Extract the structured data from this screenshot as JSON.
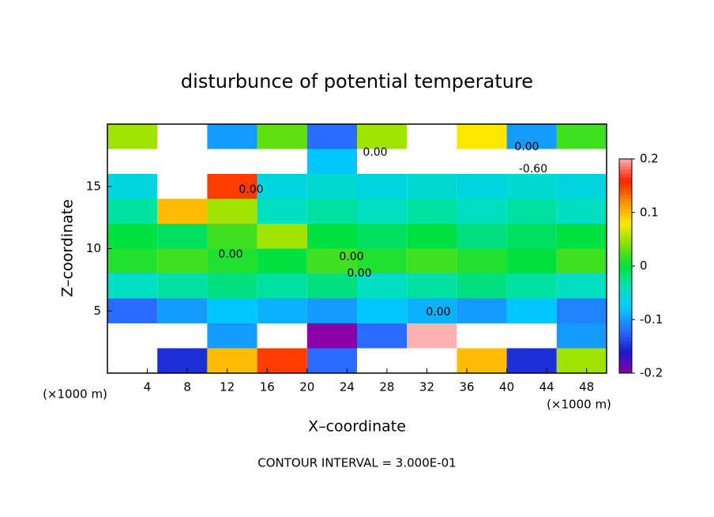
{
  "chart_data": {
    "type": "heatmap",
    "title": "disturbunce of potential temperature",
    "x_label": "X–coordinate",
    "y_label": "Z–coordinate",
    "unit_label": "(×1000 m)",
    "footer": "CONTOUR INTERVAL = 3.000E-01",
    "x": [
      2.5,
      7.5,
      12.5,
      17.5,
      22.5,
      27.5,
      32.5,
      37.5,
      42.5,
      47.5
    ],
    "z": [
      1,
      3,
      5,
      7,
      9,
      11,
      13,
      15,
      17,
      19
    ],
    "values": [
      [
        0.3,
        -0.15,
        0.1,
        0.15,
        -0.12,
        0.25,
        -0.3,
        0.1,
        -0.15,
        0.05
      ],
      [
        -0.3,
        0.25,
        -0.1,
        0.4,
        -0.2,
        -0.12,
        0.2,
        -0.25,
        0.3,
        -0.1
      ],
      [
        -0.12,
        -0.1,
        -0.08,
        -0.09,
        -0.1,
        -0.08,
        -0.09,
        -0.1,
        -0.08,
        -0.11
      ],
      [
        -0.04,
        -0.03,
        -0.02,
        -0.03,
        -0.02,
        -0.04,
        -0.03,
        -0.02,
        -0.03,
        -0.04
      ],
      [
        0.01,
        0.02,
        0.01,
        0.0,
        0.02,
        0.01,
        0.02,
        0.01,
        0.0,
        0.02
      ],
      [
        0.0,
        -0.01,
        0.02,
        0.05,
        0.0,
        -0.01,
        0.0,
        -0.02,
        -0.01,
        0.0
      ],
      [
        -0.03,
        0.1,
        0.05,
        -0.04,
        -0.03,
        -0.04,
        -0.03,
        -0.04,
        -0.03,
        -0.04
      ],
      [
        -0.06,
        0.3,
        0.15,
        -0.06,
        -0.05,
        -0.06,
        -0.05,
        -0.06,
        -0.05,
        -0.06
      ],
      [
        0.4,
        -0.5,
        -0.6,
        -0.3,
        -0.08,
        0.3,
        0.25,
        -0.4,
        -0.6,
        -0.7
      ],
      [
        0.05,
        0.4,
        -0.1,
        0.03,
        -0.12,
        0.05,
        0.4,
        0.08,
        -0.1,
        0.02
      ]
    ],
    "xlim": [
      0,
      50
    ],
    "ylim": [
      0,
      20
    ],
    "xticks": [
      4,
      8,
      12,
      16,
      20,
      24,
      28,
      32,
      36,
      40,
      44,
      48
    ],
    "yticks": [
      5,
      10,
      15
    ],
    "clim": [
      -0.2,
      0.2
    ],
    "cticks": [
      -0.2,
      -0.1,
      0,
      0.1,
      0.2
    ],
    "colors": [
      "#8b00a8",
      "#1a1acc",
      "#2a6cff",
      "#00c8ff",
      "#00e0c0",
      "#00e040",
      "#80e000",
      "#ffe800",
      "#ff9000",
      "#ff2000",
      "#ffb0b0"
    ],
    "out_of_range_color": "#ffffff",
    "contour_labels": [
      "0.00",
      "0.00",
      "-0.60",
      "0.00",
      "0.00",
      "0.00",
      "0.00",
      "0.00"
    ]
  }
}
